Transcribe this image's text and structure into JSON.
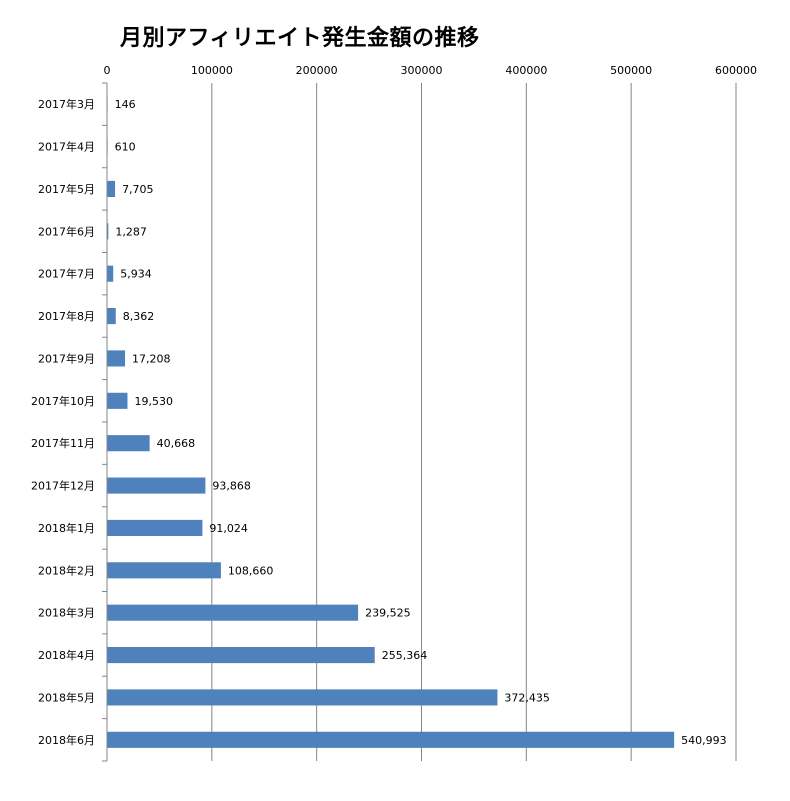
{
  "chart_data": {
    "type": "bar",
    "orientation": "horizontal",
    "title": "月別アフィリエイト発生金額の推移",
    "xlabel": "",
    "ylabel": "",
    "xlim": [
      0,
      600000
    ],
    "x_ticks": [
      "0",
      "100000",
      "200000",
      "300000",
      "400000",
      "500000",
      "600000"
    ],
    "x_axis_position": "top",
    "grid": true,
    "legend": "none",
    "bar_color": "#4f81bd",
    "categories": [
      "2017年3月",
      "2017年4月",
      "2017年5月",
      "2017年6月",
      "2017年7月",
      "2017年8月",
      "2017年9月",
      "2017年10月",
      "2017年11月",
      "2017年12月",
      "2018年1月",
      "2018年2月",
      "2018年3月",
      "2018年4月",
      "2018年5月",
      "2018年6月"
    ],
    "values": [
      146,
      610,
      7705,
      1287,
      5934,
      8362,
      17208,
      19530,
      40668,
      93868,
      91024,
      108660,
      239525,
      255364,
      372435,
      540993
    ],
    "data_labels": [
      "146",
      "610",
      "7,705",
      "1,287",
      "5,934",
      "8,362",
      "17,208",
      "19,530",
      "40,668",
      "93,868",
      "91,024",
      "108,660",
      "239,525",
      "255,364",
      "372,435",
      "540,993"
    ]
  }
}
